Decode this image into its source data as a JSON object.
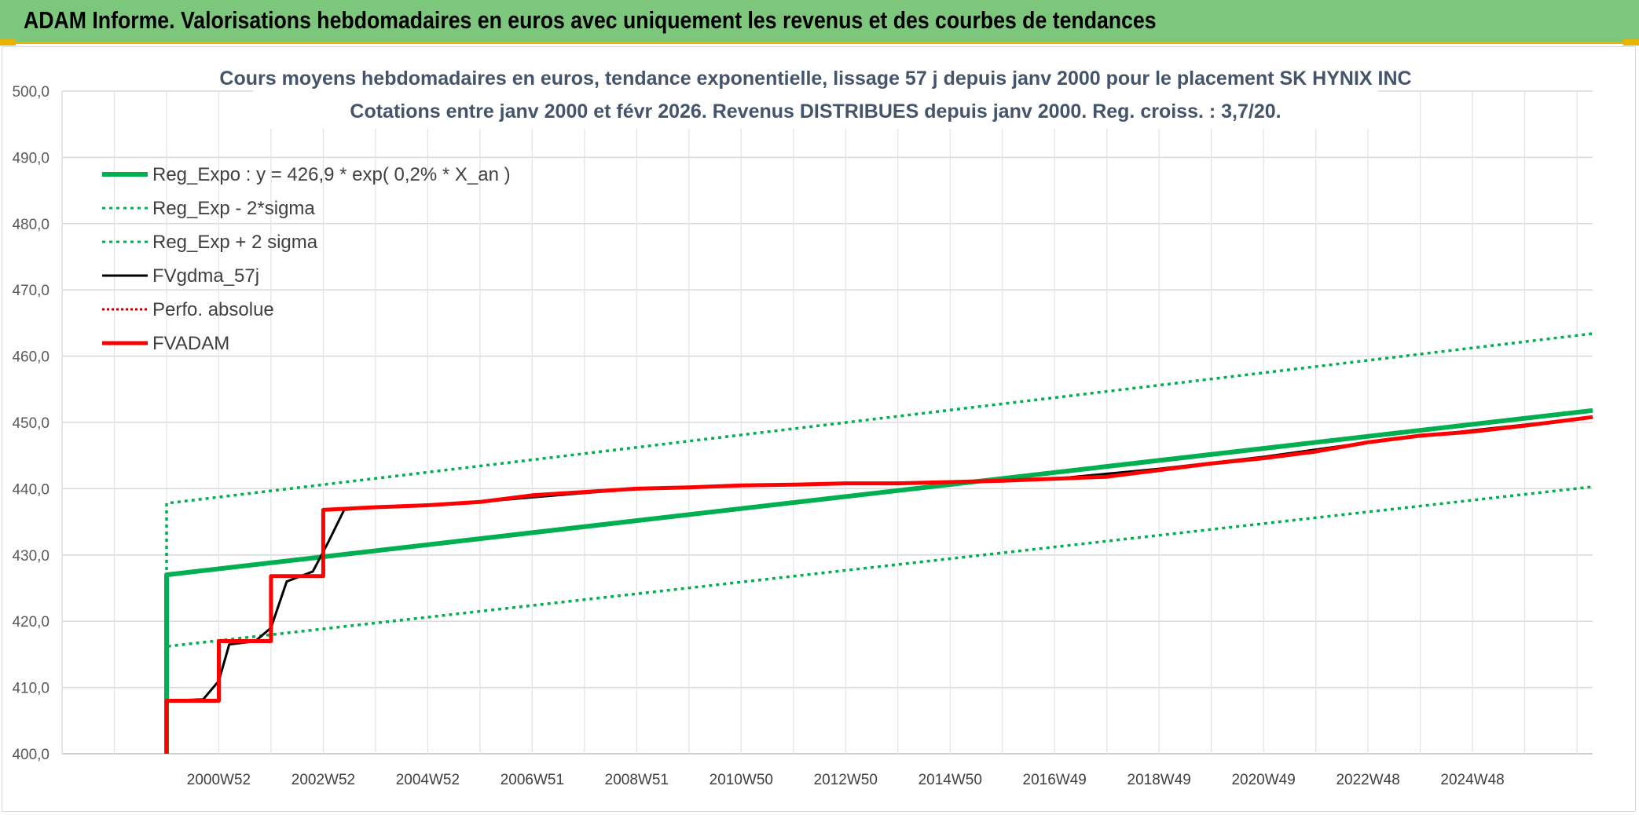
{
  "header": {
    "title": "ADAM Informe. Valorisations hebdomadaires en euros avec uniquement les revenus et des courbes de tendances"
  },
  "chart_data": {
    "type": "line",
    "title": "Cours moyens hebdomadaires en euros, tendance exponentielle, lissage 57 j depuis janv 2000 pour le placement SK HYNIX INC",
    "subtitle": "Cotations entre janv 2000 et févr 2026. Revenus DISTRIBUES depuis janv 2000. Reg. croiss. : 3,7/20.",
    "xlabel": "",
    "ylabel": "",
    "x_range": [
      1998,
      2027.3
    ],
    "ylim": [
      400,
      500
    ],
    "yticks": [
      400,
      410,
      420,
      430,
      440,
      450,
      460,
      470,
      480,
      490,
      500
    ],
    "ytick_labels": [
      "400,0",
      "410,0",
      "420,0",
      "430,0",
      "440,0",
      "450,0",
      "460,0",
      "470,0",
      "480,0",
      "490,0",
      "500,0"
    ],
    "xticks": [
      {
        "x": 2001,
        "label": "2000W52"
      },
      {
        "x": 2003,
        "label": "2002W52"
      },
      {
        "x": 2005,
        "label": "2004W52"
      },
      {
        "x": 2007,
        "label": "2006W51"
      },
      {
        "x": 2009,
        "label": "2008W51"
      },
      {
        "x": 2011,
        "label": "2010W50"
      },
      {
        "x": 2013,
        "label": "2012W50"
      },
      {
        "x": 2015,
        "label": "2014W50"
      },
      {
        "x": 2017,
        "label": "2016W49"
      },
      {
        "x": 2019,
        "label": "2018W49"
      },
      {
        "x": 2021,
        "label": "2020W49"
      },
      {
        "x": 2023,
        "label": "2022W48"
      },
      {
        "x": 2025,
        "label": "2024W48"
      }
    ],
    "grid": true,
    "legend_position": "top-left",
    "colors": {
      "green": "#00b050",
      "black": "#000000",
      "red": "#ff0000",
      "darkred": "#c00000"
    },
    "series": [
      {
        "name": "Reg_Expo : y = 426,9 * exp( 0,2% *  X_an )",
        "color": "#00b050",
        "style": "solid",
        "width": 6,
        "points": [
          [
            2000,
            400
          ],
          [
            2000,
            427
          ],
          [
            2027.3,
            451.8
          ]
        ]
      },
      {
        "name": "Reg_Exp - 2*sigma",
        "color": "#00b050",
        "style": "dotted",
        "width": 3.5,
        "points": [
          [
            2000,
            410
          ],
          [
            2000,
            416.2
          ],
          [
            2027.3,
            440.3
          ]
        ]
      },
      {
        "name": "Reg_Exp + 2 sigma",
        "color": "#00b050",
        "style": "dotted",
        "width": 3.5,
        "points": [
          [
            2000,
            416
          ],
          [
            2000,
            437.8
          ],
          [
            2027.3,
            463.4
          ]
        ]
      },
      {
        "name": "FVgdma_57j",
        "color": "#000000",
        "style": "solid",
        "width": 3,
        "points": [
          [
            2000,
            408
          ],
          [
            2000.7,
            408.2
          ],
          [
            2001,
            411
          ],
          [
            2001.2,
            416.5
          ],
          [
            2001.7,
            417
          ],
          [
            2002,
            419
          ],
          [
            2002.3,
            426
          ],
          [
            2002.8,
            427.5
          ],
          [
            2003.1,
            432
          ],
          [
            2003.4,
            436.8
          ],
          [
            2004,
            437.2
          ],
          [
            2006,
            438
          ],
          [
            2007,
            438.7
          ],
          [
            2009,
            440
          ],
          [
            2011,
            440.5
          ],
          [
            2013,
            440.8
          ],
          [
            2015,
            441
          ],
          [
            2017,
            441.5
          ],
          [
            2019,
            443
          ],
          [
            2021,
            444.8
          ],
          [
            2023,
            447
          ],
          [
            2025,
            448.8
          ],
          [
            2027,
            450.5
          ]
        ]
      },
      {
        "name": "Perfo. absolue",
        "color": "#c00000",
        "style": "dotted",
        "width": 2,
        "points": []
      },
      {
        "name": "FVADAM",
        "color": "#ff0000",
        "style": "solid",
        "width": 5,
        "points": [
          [
            2000,
            400
          ],
          [
            2000,
            408
          ],
          [
            2001,
            408
          ],
          [
            2001,
            417
          ],
          [
            2002,
            417
          ],
          [
            2002,
            426.8
          ],
          [
            2003,
            426.8
          ],
          [
            2003,
            436.8
          ],
          [
            2004,
            437.2
          ],
          [
            2005,
            437.5
          ],
          [
            2006,
            438
          ],
          [
            2007,
            439
          ],
          [
            2008,
            439.5
          ],
          [
            2009,
            440
          ],
          [
            2010,
            440.2
          ],
          [
            2011,
            440.5
          ],
          [
            2012,
            440.6
          ],
          [
            2013,
            440.8
          ],
          [
            2014,
            440.8
          ],
          [
            2015,
            441
          ],
          [
            2016,
            441.2
          ],
          [
            2017,
            441.5
          ],
          [
            2018,
            441.8
          ],
          [
            2019,
            442.8
          ],
          [
            2020,
            443.8
          ],
          [
            2021,
            444.6
          ],
          [
            2022,
            445.6
          ],
          [
            2023,
            447
          ],
          [
            2024,
            448
          ],
          [
            2025,
            448.6
          ],
          [
            2026,
            449.5
          ],
          [
            2027.3,
            450.8
          ]
        ]
      }
    ]
  }
}
